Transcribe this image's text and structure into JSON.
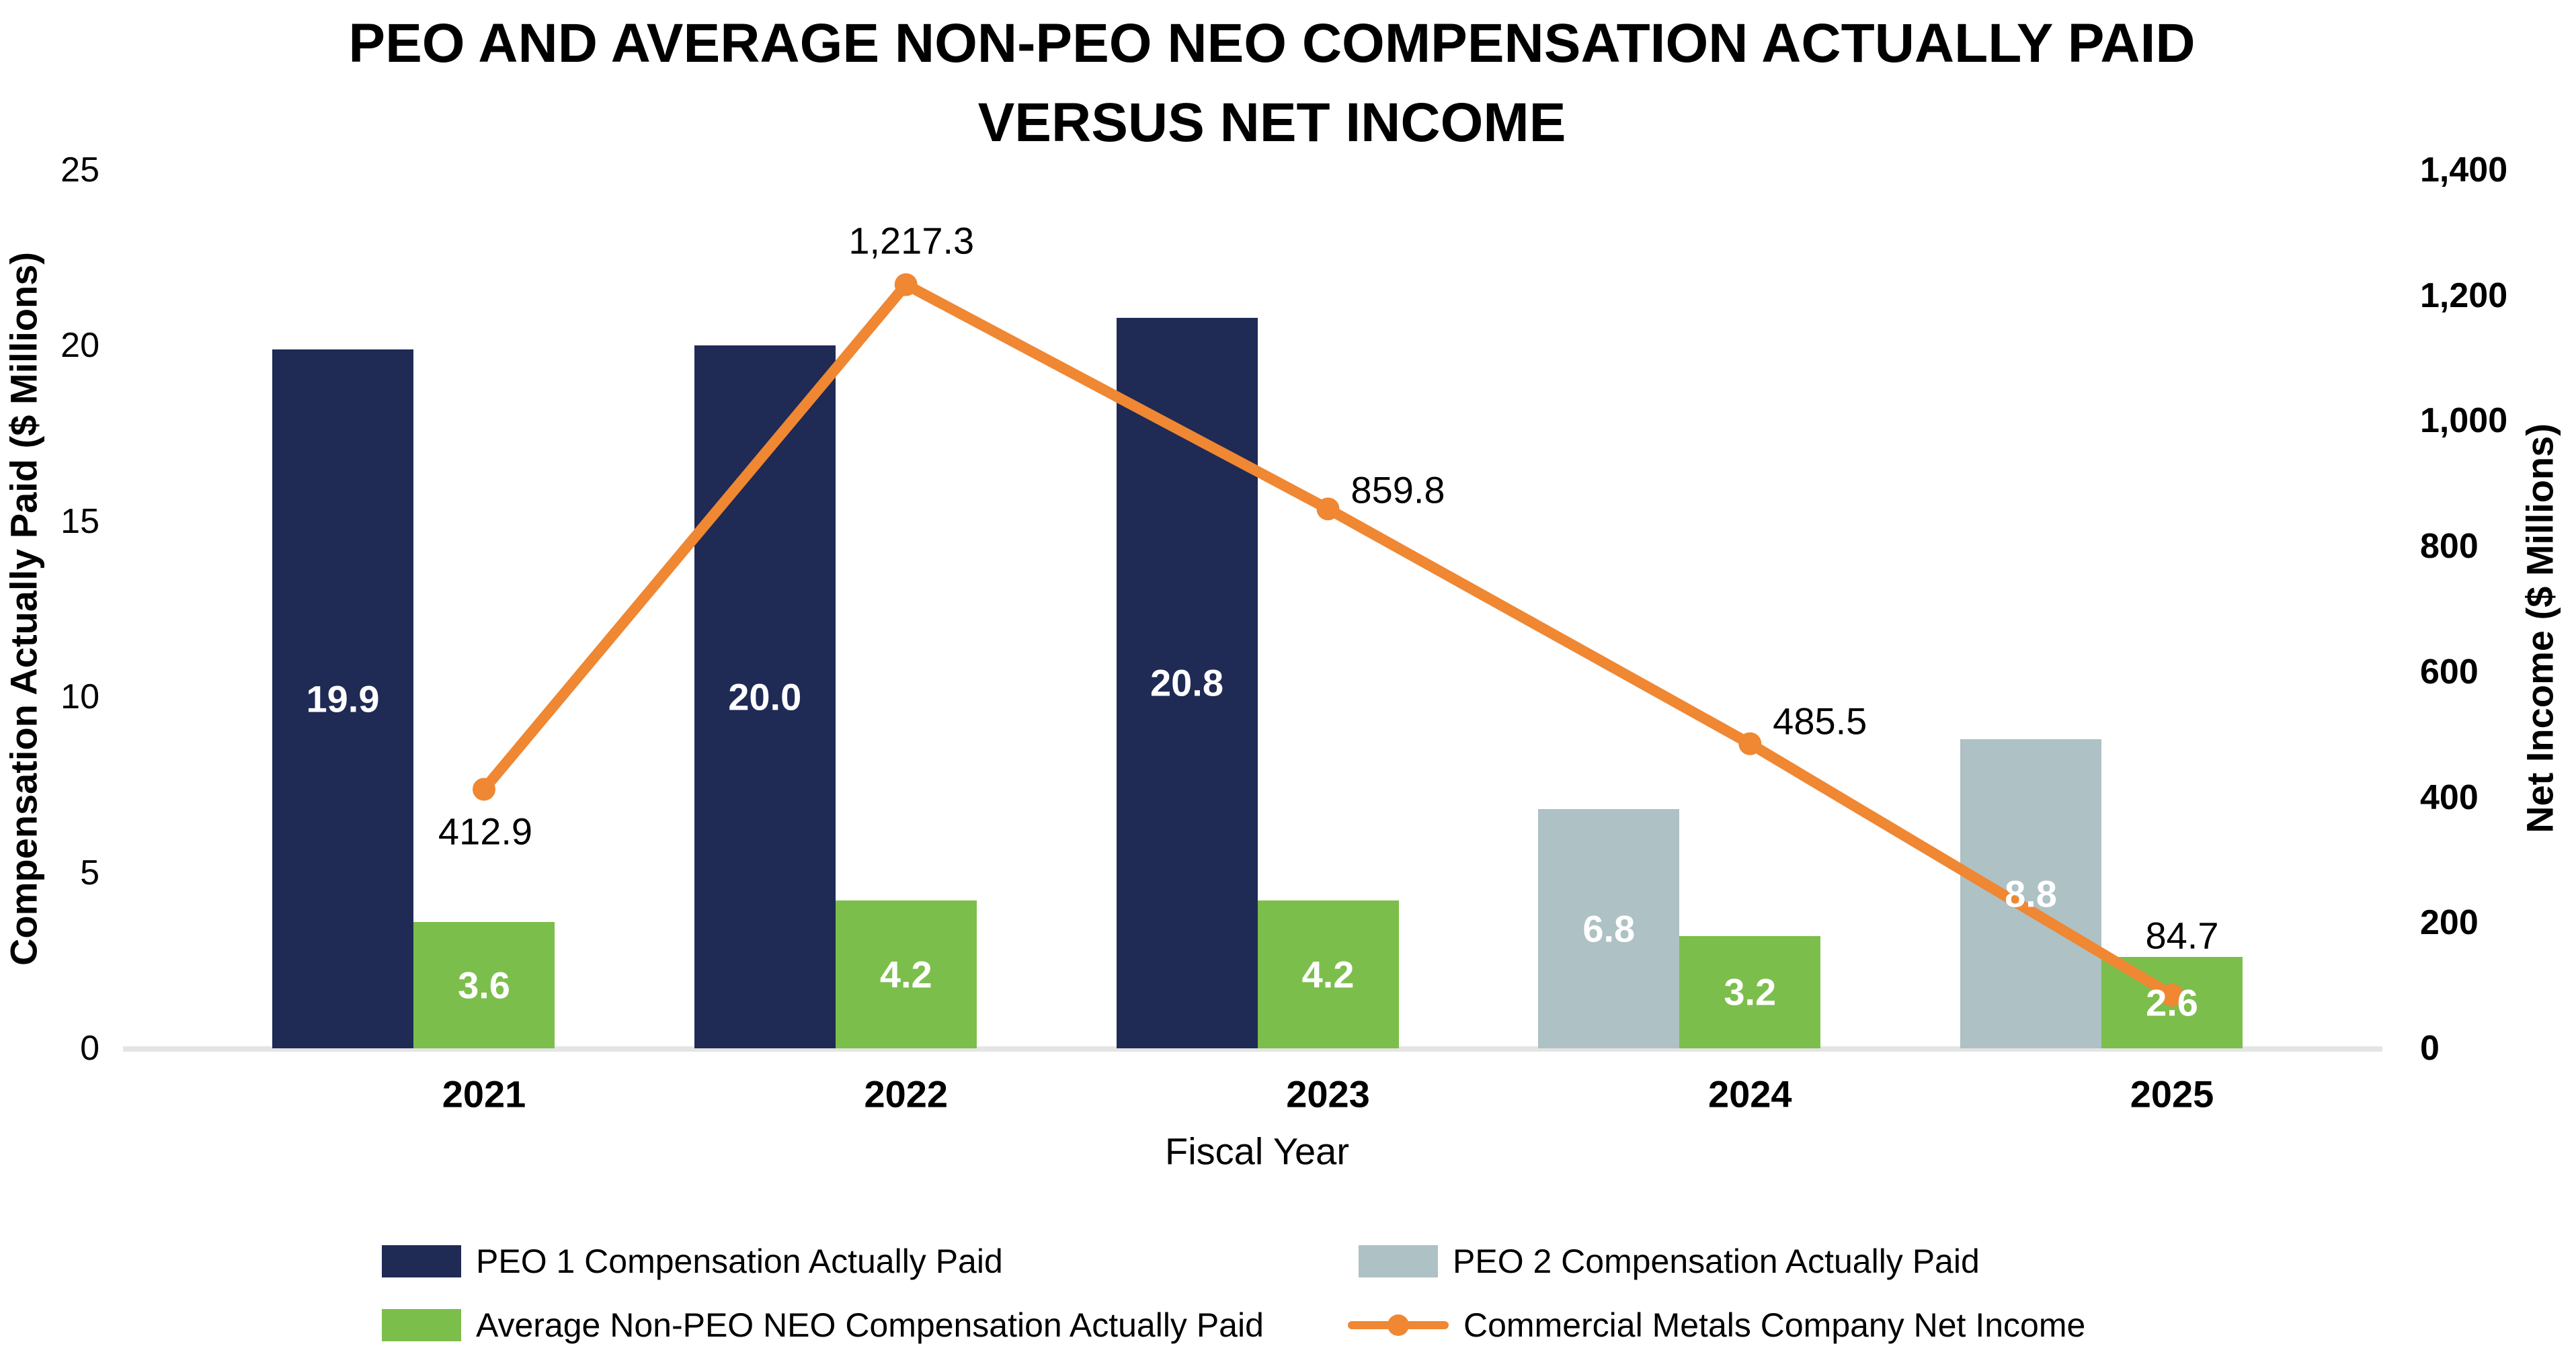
{
  "colors": {
    "navy": "#1F2A55",
    "gray": "#AEC1C5",
    "green": "#7CBE4B",
    "orange": "#EF8733",
    "baseline": "#E4E4E4",
    "text": "#000000",
    "bar_label": "#FFFFFF"
  },
  "chart_data": {
    "type": "bar+line",
    "title_lines": [
      "PEO AND AVERAGE NON-PEO NEO COMPENSATION ACTUALLY PAID",
      "VERSUS NET INCOME"
    ],
    "xlabel": "Fiscal Year",
    "categories": [
      "2021",
      "2022",
      "2023",
      "2024",
      "2025"
    ],
    "bar_series": [
      {
        "name": "PEO 1 Compensation Actually Paid",
        "color": "navy",
        "slot": "left",
        "values": [
          19.9,
          20.0,
          20.8,
          null,
          null
        ],
        "value_labels": [
          "19.9",
          "20.0",
          "20.8",
          null,
          null
        ]
      },
      {
        "name": "PEO 2 Compensation Actually Paid",
        "color": "gray",
        "slot": "left",
        "values": [
          null,
          null,
          null,
          6.8,
          8.8
        ],
        "value_labels": [
          null,
          null,
          null,
          "6.8",
          "8.8"
        ]
      },
      {
        "name": "Average Non-PEO NEO Compensation Actually Paid",
        "color": "green",
        "slot": "right",
        "values": [
          3.6,
          4.2,
          4.2,
          3.2,
          2.6
        ],
        "value_labels": [
          "3.6",
          "4.2",
          "4.2",
          "3.2",
          "2.6"
        ]
      }
    ],
    "line_series": {
      "name": "Commercial Metals Company Net Income",
      "color": "orange",
      "values": [
        412.9,
        1217.3,
        859.8,
        485.5,
        84.7
      ],
      "value_labels": [
        "412.9",
        "1,217.3",
        "859.8",
        "485.5",
        "84.7"
      ]
    },
    "left_axis": {
      "label": "Compensation Actually Paid ($ Millions)",
      "range": [
        0,
        25
      ],
      "ticks": [
        25,
        20,
        15,
        10,
        5,
        0
      ],
      "tick_labels": [
        "25",
        "20",
        "15",
        "10",
        "5",
        "0"
      ]
    },
    "right_axis": {
      "label": "Net Income ($ Millions)",
      "range": [
        0,
        1400
      ],
      "ticks": [
        1400,
        1200,
        1000,
        800,
        600,
        400,
        200,
        0
      ],
      "tick_labels": [
        "1,400",
        "1,200",
        "1,000",
        "800",
        "600",
        "400",
        "200",
        "0"
      ]
    },
    "legend_position": "bottom",
    "grid": false
  }
}
